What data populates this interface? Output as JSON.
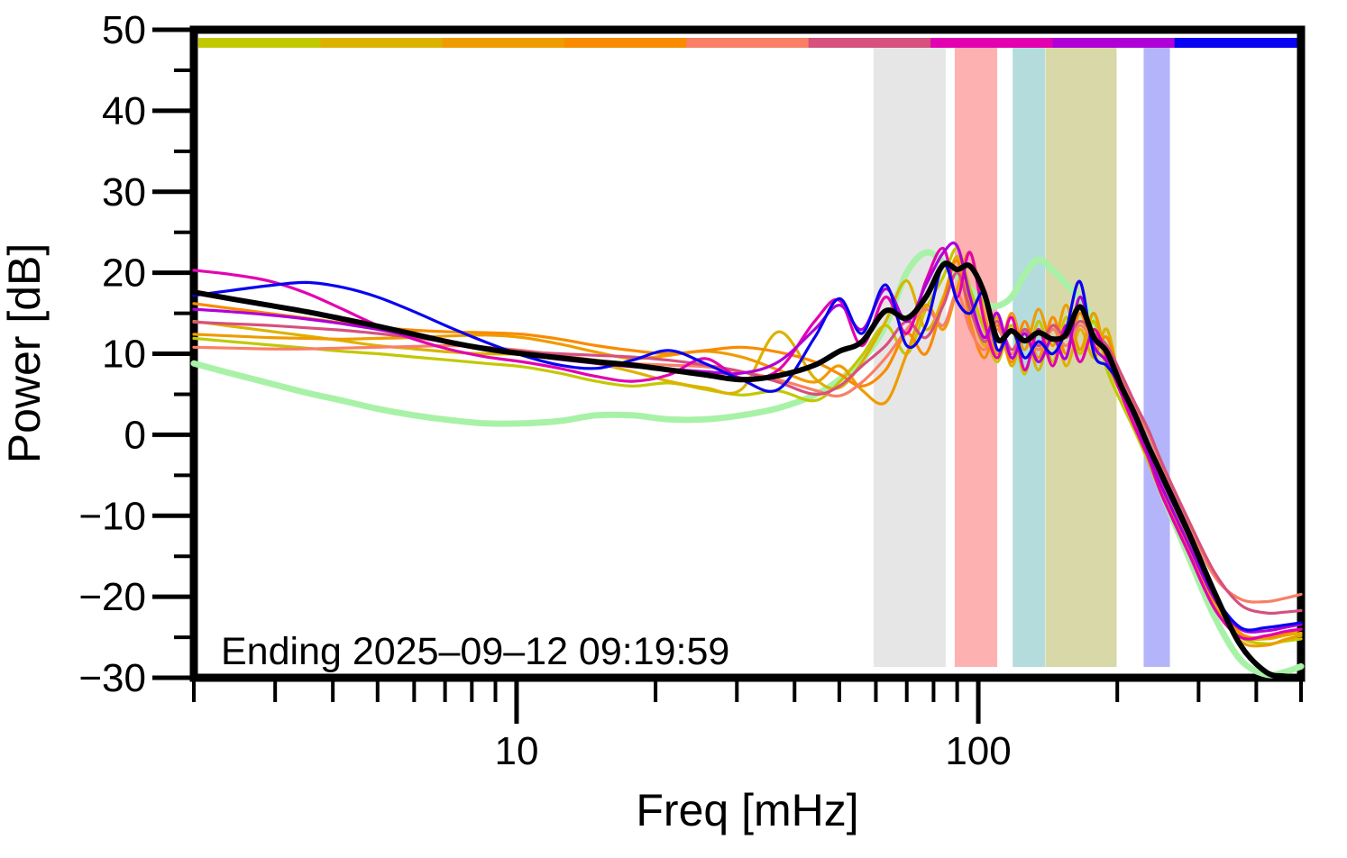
{
  "annotation": "Ending 2025–09–12 09:19:59",
  "background": "#ffffff",
  "frame_color": "#000000",
  "axes": {
    "x": {
      "label": "Freq [mHz]",
      "scale": "log",
      "min_mhz": 2,
      "max_mhz": 500,
      "major_ticks": [
        10,
        100
      ],
      "major_tick_labels": [
        "10",
        "100"
      ],
      "minor_ticks": [
        2,
        3,
        4,
        5,
        6,
        7,
        8,
        9,
        20,
        30,
        40,
        50,
        60,
        70,
        80,
        90,
        200,
        300,
        400,
        500
      ]
    },
    "y": {
      "label": "Power [dB]",
      "min_db": -30,
      "max_db": 50,
      "major_ticks": [
        50,
        40,
        30,
        20,
        10,
        0,
        -10,
        -20,
        -30
      ],
      "major_tick_labels": [
        "50",
        "40",
        "30",
        "20",
        "10",
        "0",
        "−10",
        "−20",
        "−30"
      ],
      "minor_ticks": [
        45,
        35,
        25,
        15,
        5,
        -5,
        -15,
        -25
      ]
    }
  },
  "colorbar": {
    "description": "time-segment colorbar, 9 equal segments left to right",
    "segment_colors": [
      "#c2c800",
      "#dcb200",
      "#ee9c00",
      "#f98b00",
      "#f97f66",
      "#d6517d",
      "#e300b0",
      "#b000d8",
      "#0803f0"
    ]
  },
  "bands": [
    {
      "name": "band-gray",
      "from_mhz": 59.3,
      "to_mhz": 85.0,
      "color": "#e6e6e6"
    },
    {
      "name": "band-pink",
      "from_mhz": 88.9,
      "to_mhz": 109.9,
      "color": "#feb1b1"
    },
    {
      "name": "band-teal",
      "from_mhz": 118.7,
      "to_mhz": 139.6,
      "color": "#b4dcdc"
    },
    {
      "name": "band-olive",
      "from_mhz": 139.9,
      "to_mhz": 199.3,
      "color": "#d8d8a8"
    },
    {
      "name": "band-lavender",
      "from_mhz": 228.1,
      "to_mhz": 260.0,
      "color": "#b4b4fa"
    }
  ],
  "chart_data": {
    "type": "line",
    "title": "",
    "xlabel": "Freq [mHz]",
    "ylabel": "Power [dB]",
    "xlim_mhz": [
      2,
      500
    ],
    "ylim_db": [
      -30,
      50
    ],
    "grid": false,
    "legend": "none",
    "x_mhz": [
      2.0,
      2.4,
      2.9,
      3.5,
      4.2,
      5.0,
      6.0,
      7.2,
      8.6,
      10.3,
      12.4,
      14.9,
      17.8,
      21.4,
      25.6,
      30.7,
      36.9,
      44.2,
      50.0,
      56.0,
      63.0,
      70.0,
      77.0,
      84.0,
      90.0,
      96.0,
      103.0,
      110.0,
      118.0,
      126.0,
      135.0,
      145.0,
      155.0,
      166.0,
      178.0,
      190.0,
      204.0,
      218.0,
      234.0,
      250.0,
      285.0,
      325.0,
      370.0,
      420.0,
      460.0,
      500.0
    ],
    "series": [
      {
        "name": "reference-spectrum",
        "color": "#a8f2a8",
        "width": 7,
        "values": [
          8.8,
          7.6,
          6.4,
          5.2,
          4.2,
          3.2,
          2.4,
          1.8,
          1.4,
          1.4,
          1.7,
          2.4,
          2.4,
          1.9,
          1.9,
          2.4,
          3.3,
          4.9,
          6.8,
          9.2,
          13.5,
          20.0,
          22.5,
          21.3,
          19.6,
          18.0,
          16.3,
          15.9,
          17.0,
          19.8,
          21.6,
          20.3,
          18.6,
          16.8,
          14.0,
          10.5,
          5.8,
          1.8,
          -2.8,
          -7.2,
          -15.0,
          -22.5,
          -27.8,
          -29.6,
          -29.3,
          -28.6
        ]
      },
      {
        "name": "segment-1",
        "color": "#c2c800",
        "width": 3.2,
        "values": [
          11.9,
          11.5,
          11.1,
          10.7,
          10.3,
          10.0,
          9.6,
          9.2,
          8.8,
          8.4,
          7.6,
          6.6,
          6.0,
          6.4,
          5.6,
          4.9,
          5.4,
          4.2,
          6.5,
          9.8,
          13.5,
          10.0,
          15.5,
          19.5,
          23.0,
          18.0,
          13.0,
          9.0,
          13.5,
          7.5,
          14.0,
          9.0,
          14.5,
          10.0,
          14.0,
          8.0,
          4.0,
          0.5,
          -3.5,
          -7.5,
          -14.5,
          -21.0,
          -25.0,
          -25.8,
          -25.5,
          -25.2
        ]
      },
      {
        "name": "segment-2",
        "color": "#dcb200",
        "width": 3.2,
        "values": [
          14.0,
          13.4,
          12.8,
          12.2,
          11.6,
          11.0,
          10.6,
          10.2,
          10.0,
          9.9,
          9.6,
          8.8,
          7.8,
          6.6,
          5.8,
          5.6,
          12.7,
          7.0,
          5.8,
          9.0,
          14.0,
          19.0,
          13.0,
          17.0,
          22.0,
          16.0,
          11.0,
          14.5,
          8.5,
          13.0,
          8.0,
          13.5,
          8.5,
          13.0,
          9.5,
          13.0,
          5.5,
          1.5,
          -2.5,
          -6.5,
          -13.5,
          -20.5,
          -24.8,
          -25.2,
          -24.8,
          -24.5
        ]
      },
      {
        "name": "segment-3",
        "color": "#ee9c00",
        "width": 3.2,
        "values": [
          12.4,
          12.2,
          12.0,
          11.9,
          11.8,
          11.9,
          12.0,
          12.2,
          12.3,
          12.0,
          11.2,
          10.2,
          9.4,
          9.8,
          10.3,
          9.6,
          8.0,
          6.5,
          8.5,
          5.5,
          4.0,
          10.0,
          16.0,
          13.0,
          18.0,
          22.5,
          15.0,
          10.0,
          15.0,
          10.5,
          15.5,
          11.0,
          16.0,
          10.5,
          15.0,
          9.0,
          5.0,
          1.0,
          -3.0,
          -7.0,
          -14.0,
          -20.8,
          -25.5,
          -26.0,
          -25.3,
          -24.8
        ]
      },
      {
        "name": "segment-4",
        "color": "#f98b00",
        "width": 3.2,
        "values": [
          16.2,
          15.6,
          15.0,
          14.4,
          13.8,
          13.3,
          12.9,
          12.7,
          12.6,
          12.4,
          11.8,
          11.0,
          10.4,
          10.0,
          10.4,
          10.8,
          10.2,
          9.0,
          7.5,
          6.0,
          8.0,
          12.5,
          10.0,
          16.5,
          21.5,
          14.0,
          9.5,
          13.5,
          9.0,
          14.0,
          9.5,
          14.5,
          10.0,
          15.0,
          10.5,
          12.0,
          6.5,
          2.0,
          -2.0,
          -6.0,
          -13.0,
          -20.0,
          -24.5,
          -25.0,
          -24.6,
          -24.0
        ]
      },
      {
        "name": "segment-5",
        "color": "#f97f66",
        "width": 3.2,
        "values": [
          10.8,
          10.7,
          10.6,
          10.6,
          10.7,
          10.8,
          10.9,
          11.0,
          10.8,
          10.4,
          9.8,
          9.2,
          8.8,
          8.6,
          8.4,
          7.8,
          6.8,
          5.5,
          4.8,
          6.5,
          9.5,
          13.0,
          15.5,
          13.5,
          17.5,
          13.0,
          10.5,
          13.0,
          10.0,
          12.5,
          10.5,
          13.0,
          11.0,
          13.5,
          11.5,
          10.0,
          7.0,
          3.5,
          0.0,
          -4.0,
          -11.0,
          -17.5,
          -20.3,
          -20.6,
          -20.2,
          -19.7
        ]
      },
      {
        "name": "segment-6",
        "color": "#d6517d",
        "width": 3.2,
        "values": [
          13.9,
          13.7,
          13.5,
          13.2,
          12.9,
          12.5,
          12.0,
          11.4,
          10.8,
          10.3,
          10.0,
          9.8,
          9.6,
          9.2,
          8.6,
          7.8,
          6.5,
          5.0,
          6.0,
          8.5,
          11.0,
          14.0,
          12.0,
          16.0,
          20.0,
          15.5,
          11.5,
          14.0,
          10.5,
          13.0,
          11.0,
          13.5,
          12.0,
          14.0,
          12.5,
          11.0,
          7.5,
          4.0,
          0.5,
          -3.5,
          -10.5,
          -17.0,
          -21.0,
          -22.0,
          -21.9,
          -21.7
        ]
      },
      {
        "name": "segment-7",
        "color": "#e300b0",
        "width": 3.2,
        "values": [
          20.3,
          19.8,
          19.0,
          17.5,
          15.5,
          13.5,
          11.8,
          10.5,
          9.6,
          9.0,
          8.2,
          7.2,
          6.6,
          7.4,
          9.4,
          7.0,
          8.0,
          14.0,
          16.6,
          11.0,
          17.0,
          12.5,
          19.0,
          23.0,
          17.0,
          22.5,
          14.0,
          9.5,
          14.5,
          8.0,
          13.0,
          8.5,
          13.5,
          9.0,
          13.0,
          9.5,
          5.0,
          1.0,
          -3.0,
          -7.5,
          -14.5,
          -21.5,
          -25.0,
          -24.8,
          -24.3,
          -24.0
        ]
      },
      {
        "name": "segment-8",
        "color": "#b000d8",
        "width": 3.2,
        "values": [
          15.5,
          15.2,
          14.8,
          14.3,
          13.7,
          13.0,
          12.2,
          11.4,
          10.6,
          9.9,
          9.3,
          8.8,
          8.4,
          8.1,
          7.8,
          7.6,
          9.0,
          13.0,
          16.0,
          13.0,
          18.0,
          14.0,
          18.5,
          22.5,
          23.3,
          17.0,
          12.0,
          15.0,
          9.5,
          12.5,
          9.0,
          12.0,
          9.5,
          17.0,
          11.0,
          9.0,
          5.5,
          2.0,
          -2.5,
          -6.5,
          -13.5,
          -20.3,
          -24.0,
          -24.2,
          -23.8,
          -23.4
        ]
      },
      {
        "name": "segment-9",
        "color": "#0803f0",
        "width": 3.2,
        "values": [
          17.2,
          17.8,
          18.4,
          18.8,
          18.2,
          17.0,
          15.2,
          13.2,
          11.4,
          9.8,
          8.6,
          8.2,
          9.2,
          10.4,
          8.8,
          6.8,
          5.6,
          12.0,
          16.8,
          12.5,
          18.5,
          11.0,
          13.5,
          21.0,
          16.5,
          15.0,
          17.5,
          10.5,
          13.0,
          9.5,
          11.5,
          10.0,
          13.0,
          18.9,
          10.0,
          8.5,
          6.0,
          2.5,
          -1.5,
          -5.5,
          -12.5,
          -19.8,
          -23.8,
          -23.8,
          -23.5,
          -23.2
        ]
      },
      {
        "name": "mean-spectrum",
        "color": "#000000",
        "width": 6,
        "values": [
          17.6,
          16.8,
          16.0,
          15.2,
          14.3,
          13.4,
          12.4,
          11.4,
          10.6,
          10.0,
          9.5,
          9.0,
          8.6,
          8.0,
          7.4,
          6.8,
          7.3,
          8.6,
          10.3,
          11.5,
          15.3,
          14.4,
          17.0,
          21.0,
          20.4,
          20.8,
          17.5,
          11.8,
          12.8,
          11.6,
          12.6,
          11.8,
          12.4,
          15.8,
          12.0,
          10.2,
          6.0,
          2.6,
          -1.5,
          -5.0,
          -12.0,
          -19.5,
          -26.0,
          -29.3,
          -29.8,
          -29.9
        ]
      }
    ]
  }
}
